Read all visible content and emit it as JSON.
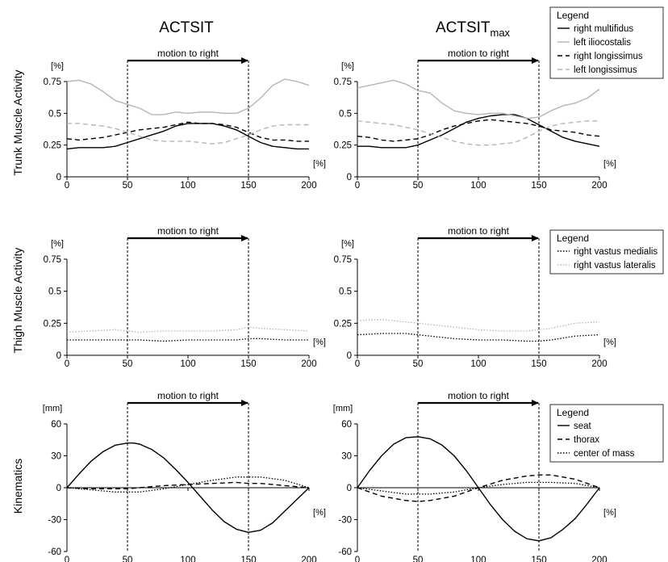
{
  "column_titles": [
    {
      "main": "ACTSIT",
      "sub": ""
    },
    {
      "main": "ACTSIT",
      "sub": "max"
    }
  ],
  "row_titles": [
    "Trunk Muscle Activity",
    "Thigh Muscle Activity",
    "Kinematics"
  ],
  "annotation": "motion to right",
  "chart_data": [
    {
      "type": "line",
      "row": 0,
      "col": 0,
      "xlim": [
        0,
        200
      ],
      "xticks": [
        0,
        50,
        100,
        150,
        200
      ],
      "ylim": [
        0,
        0.75
      ],
      "yticks": [
        "0",
        "0.25",
        "0.5",
        "0.75"
      ],
      "ytick_values": [
        0,
        0.25,
        0.5,
        0.75
      ],
      "ylabel": "[%]",
      "xlabel": "[%]",
      "markers": [
        50,
        150
      ],
      "legend": {
        "title": "Legend",
        "entries": [
          "right multifidus",
          "left iliocostalis",
          "right longissimus",
          "left longissimus"
        ]
      },
      "series": [
        {
          "name": "right multifidus",
          "color": "#000000",
          "dash": "solid",
          "x": [
            0,
            10,
            20,
            30,
            40,
            50,
            60,
            70,
            80,
            90,
            100,
            110,
            120,
            130,
            140,
            150,
            160,
            170,
            180,
            190,
            200
          ],
          "y": [
            0.22,
            0.23,
            0.23,
            0.23,
            0.24,
            0.27,
            0.3,
            0.33,
            0.36,
            0.4,
            0.42,
            0.42,
            0.42,
            0.4,
            0.37,
            0.32,
            0.27,
            0.24,
            0.23,
            0.22,
            0.22
          ]
        },
        {
          "name": "left iliocostalis",
          "color": "#b5b5b5",
          "dash": "solid",
          "x": [
            0,
            10,
            20,
            30,
            40,
            50,
            60,
            70,
            80,
            90,
            100,
            110,
            120,
            130,
            140,
            150,
            160,
            170,
            180,
            190,
            200
          ],
          "y": [
            0.75,
            0.76,
            0.73,
            0.67,
            0.6,
            0.57,
            0.54,
            0.49,
            0.49,
            0.51,
            0.5,
            0.51,
            0.51,
            0.5,
            0.5,
            0.54,
            0.62,
            0.72,
            0.77,
            0.75,
            0.72
          ]
        },
        {
          "name": "right longissimus",
          "color": "#000000",
          "dash": "dashed",
          "x": [
            0,
            10,
            20,
            30,
            40,
            50,
            60,
            70,
            80,
            90,
            100,
            110,
            120,
            130,
            140,
            150,
            160,
            170,
            180,
            190,
            200
          ],
          "y": [
            0.3,
            0.29,
            0.3,
            0.31,
            0.33,
            0.35,
            0.37,
            0.38,
            0.39,
            0.41,
            0.43,
            0.42,
            0.42,
            0.41,
            0.39,
            0.35,
            0.31,
            0.29,
            0.29,
            0.28,
            0.28
          ]
        },
        {
          "name": "left longissimus",
          "color": "#b5b5b5",
          "dash": "dashed",
          "x": [
            0,
            10,
            20,
            30,
            40,
            50,
            60,
            70,
            80,
            90,
            100,
            110,
            120,
            130,
            140,
            150,
            160,
            170,
            180,
            190,
            200
          ],
          "y": [
            0.42,
            0.42,
            0.41,
            0.4,
            0.38,
            0.35,
            0.32,
            0.29,
            0.28,
            0.28,
            0.28,
            0.27,
            0.26,
            0.27,
            0.3,
            0.33,
            0.37,
            0.4,
            0.41,
            0.41,
            0.41
          ]
        }
      ]
    },
    {
      "type": "line",
      "row": 0,
      "col": 1,
      "xlim": [
        0,
        200
      ],
      "xticks": [
        0,
        50,
        100,
        150,
        200
      ],
      "ylim": [
        0,
        0.75
      ],
      "yticks": [
        "0",
        "0.25",
        "0.5",
        "0.75"
      ],
      "ytick_values": [
        0,
        0.25,
        0.5,
        0.75
      ],
      "ylabel": "[%]",
      "xlabel": "[%]",
      "markers": [
        50,
        150
      ],
      "series": [
        {
          "name": "right multifidus",
          "color": "#000000",
          "dash": "solid",
          "x": [
            0,
            10,
            20,
            30,
            40,
            50,
            60,
            70,
            80,
            90,
            100,
            110,
            120,
            130,
            140,
            150,
            160,
            170,
            180,
            190,
            200
          ],
          "y": [
            0.24,
            0.24,
            0.23,
            0.23,
            0.23,
            0.25,
            0.29,
            0.33,
            0.38,
            0.43,
            0.46,
            0.48,
            0.49,
            0.49,
            0.46,
            0.41,
            0.36,
            0.31,
            0.28,
            0.26,
            0.24
          ]
        },
        {
          "name": "left iliocostalis",
          "color": "#b5b5b5",
          "dash": "solid",
          "x": [
            0,
            10,
            20,
            30,
            40,
            50,
            60,
            70,
            80,
            90,
            100,
            110,
            120,
            130,
            140,
            150,
            160,
            170,
            180,
            190,
            200
          ],
          "y": [
            0.7,
            0.72,
            0.74,
            0.76,
            0.73,
            0.68,
            0.66,
            0.58,
            0.52,
            0.5,
            0.49,
            0.5,
            0.5,
            0.48,
            0.46,
            0.47,
            0.52,
            0.56,
            0.58,
            0.62,
            0.69
          ]
        },
        {
          "name": "right longissimus",
          "color": "#000000",
          "dash": "dashed",
          "x": [
            0,
            10,
            20,
            30,
            40,
            50,
            60,
            70,
            80,
            90,
            100,
            110,
            120,
            130,
            140,
            150,
            160,
            170,
            180,
            190,
            200
          ],
          "y": [
            0.32,
            0.31,
            0.29,
            0.28,
            0.29,
            0.3,
            0.33,
            0.37,
            0.4,
            0.42,
            0.44,
            0.45,
            0.44,
            0.43,
            0.42,
            0.4,
            0.37,
            0.36,
            0.35,
            0.33,
            0.32
          ]
        },
        {
          "name": "left longissimus",
          "color": "#b5b5b5",
          "dash": "dashed",
          "x": [
            0,
            10,
            20,
            30,
            40,
            50,
            60,
            70,
            80,
            90,
            100,
            110,
            120,
            130,
            140,
            150,
            160,
            170,
            180,
            190,
            200
          ],
          "y": [
            0.44,
            0.43,
            0.42,
            0.41,
            0.39,
            0.37,
            0.34,
            0.31,
            0.28,
            0.26,
            0.25,
            0.25,
            0.26,
            0.27,
            0.31,
            0.36,
            0.4,
            0.42,
            0.43,
            0.44,
            0.44
          ]
        }
      ]
    },
    {
      "type": "line",
      "row": 1,
      "col": 0,
      "xlim": [
        0,
        200
      ],
      "xticks": [
        0,
        50,
        100,
        150,
        200
      ],
      "ylim": [
        0,
        0.75
      ],
      "yticks": [
        "0",
        "0.25",
        "0.5",
        "0.75"
      ],
      "ytick_values": [
        0,
        0.25,
        0.5,
        0.75
      ],
      "ylabel": "[%]",
      "xlabel": "[%]",
      "markers": [
        50,
        150
      ],
      "series": [
        {
          "name": "right vastus medialis",
          "color": "#000000",
          "dash": "dotted",
          "x": [
            0,
            20,
            40,
            60,
            80,
            100,
            120,
            140,
            150,
            160,
            180,
            200
          ],
          "y": [
            0.12,
            0.12,
            0.12,
            0.12,
            0.11,
            0.12,
            0.12,
            0.12,
            0.13,
            0.13,
            0.12,
            0.12
          ]
        },
        {
          "name": "right vastus lateralis",
          "color": "#b5b5b5",
          "dash": "dotted",
          "x": [
            0,
            20,
            40,
            60,
            80,
            100,
            120,
            140,
            150,
            160,
            180,
            200
          ],
          "y": [
            0.18,
            0.19,
            0.2,
            0.18,
            0.19,
            0.19,
            0.19,
            0.2,
            0.22,
            0.21,
            0.2,
            0.19
          ]
        }
      ]
    },
    {
      "type": "line",
      "row": 1,
      "col": 1,
      "xlim": [
        0,
        200
      ],
      "xticks": [
        0,
        50,
        100,
        150,
        200
      ],
      "ylim": [
        0,
        0.75
      ],
      "yticks": [
        "0",
        "0.25",
        "0.5",
        "0.75"
      ],
      "ytick_values": [
        0,
        0.25,
        0.5,
        0.75
      ],
      "ylabel": "[%]",
      "xlabel": "[%]",
      "markers": [
        50,
        150
      ],
      "legend": {
        "title": "Legend",
        "entries": [
          "right vastus medialis",
          "right vastus lateralis"
        ]
      },
      "series": [
        {
          "name": "right vastus medialis",
          "color": "#000000",
          "dash": "dotted",
          "x": [
            0,
            20,
            40,
            60,
            80,
            100,
            120,
            140,
            150,
            160,
            180,
            200
          ],
          "y": [
            0.16,
            0.17,
            0.17,
            0.15,
            0.13,
            0.12,
            0.12,
            0.11,
            0.11,
            0.12,
            0.15,
            0.16
          ]
        },
        {
          "name": "right vastus lateralis",
          "color": "#b5b5b5",
          "dash": "dotted",
          "x": [
            0,
            20,
            40,
            60,
            80,
            100,
            120,
            140,
            150,
            160,
            180,
            200
          ],
          "y": [
            0.27,
            0.28,
            0.26,
            0.24,
            0.22,
            0.2,
            0.19,
            0.19,
            0.2,
            0.21,
            0.25,
            0.26
          ]
        }
      ]
    },
    {
      "type": "line",
      "row": 2,
      "col": 0,
      "xlim": [
        0,
        200
      ],
      "xticks": [
        0,
        50,
        100,
        150,
        200
      ],
      "ylim": [
        -60,
        60
      ],
      "yticks": [
        "-60",
        "-30",
        "0",
        "30",
        "60"
      ],
      "ytick_values": [
        -60,
        -30,
        0,
        30,
        60
      ],
      "ylabel": "[mm]",
      "xlabel": "[%]",
      "markers": [
        50,
        150
      ],
      "series": [
        {
          "name": "seat",
          "color": "#000000",
          "dash": "solid",
          "x": [
            0,
            10,
            20,
            30,
            40,
            50,
            55,
            60,
            70,
            80,
            90,
            100,
            110,
            120,
            130,
            140,
            150,
            160,
            170,
            180,
            190,
            200
          ],
          "y": [
            0,
            13,
            25,
            34,
            40,
            42,
            42,
            41,
            36,
            28,
            17,
            5,
            -8,
            -21,
            -32,
            -39,
            -42,
            -40,
            -33,
            -22,
            -11,
            0
          ]
        },
        {
          "name": "thorax",
          "color": "#000000",
          "dash": "dashed",
          "x": [
            0,
            20,
            40,
            50,
            60,
            80,
            100,
            120,
            140,
            150,
            160,
            180,
            200
          ],
          "y": [
            0,
            -1,
            -1,
            -1,
            0,
            2,
            3,
            4,
            5,
            4,
            4,
            2,
            0
          ]
        },
        {
          "name": "center of mass",
          "color": "#000000",
          "dash": "dotted",
          "x": [
            0,
            20,
            40,
            50,
            60,
            80,
            100,
            120,
            140,
            150,
            160,
            180,
            200
          ],
          "y": [
            0,
            -2,
            -4,
            -4,
            -4,
            -1,
            3,
            7,
            10,
            10,
            10,
            7,
            0
          ]
        }
      ]
    },
    {
      "type": "line",
      "row": 2,
      "col": 1,
      "xlim": [
        0,
        200
      ],
      "xticks": [
        0,
        50,
        100,
        150,
        200
      ],
      "ylim": [
        -60,
        60
      ],
      "yticks": [
        "-60",
        "-30",
        "0",
        "30",
        "60"
      ],
      "ytick_values": [
        -60,
        -30,
        0,
        30,
        60
      ],
      "ylabel": "[mm]",
      "xlabel": "[%]",
      "markers": [
        50,
        150
      ],
      "legend": {
        "title": "Legend",
        "entries": [
          "seat",
          "thorax",
          "center of mass"
        ]
      },
      "series": [
        {
          "name": "seat",
          "color": "#000000",
          "dash": "solid",
          "x": [
            0,
            10,
            20,
            30,
            40,
            50,
            60,
            70,
            80,
            90,
            100,
            110,
            120,
            130,
            140,
            150,
            160,
            170,
            180,
            190,
            200
          ],
          "y": [
            0,
            16,
            30,
            41,
            47,
            48,
            46,
            40,
            30,
            16,
            0,
            -16,
            -30,
            -41,
            -48,
            -50,
            -47,
            -39,
            -29,
            -15,
            0
          ]
        },
        {
          "name": "thorax",
          "color": "#000000",
          "dash": "dashed",
          "x": [
            0,
            20,
            40,
            50,
            60,
            80,
            100,
            120,
            140,
            150,
            160,
            180,
            200
          ],
          "y": [
            0,
            -8,
            -12,
            -13,
            -12,
            -8,
            0,
            7,
            11,
            12,
            12,
            8,
            0
          ]
        },
        {
          "name": "center of mass",
          "color": "#000000",
          "dash": "dotted",
          "x": [
            0,
            20,
            40,
            50,
            60,
            80,
            100,
            120,
            140,
            150,
            160,
            180,
            200
          ],
          "y": [
            0,
            -3,
            -6,
            -6,
            -6,
            -4,
            0,
            3,
            5,
            5,
            5,
            4,
            0
          ]
        }
      ]
    }
  ]
}
